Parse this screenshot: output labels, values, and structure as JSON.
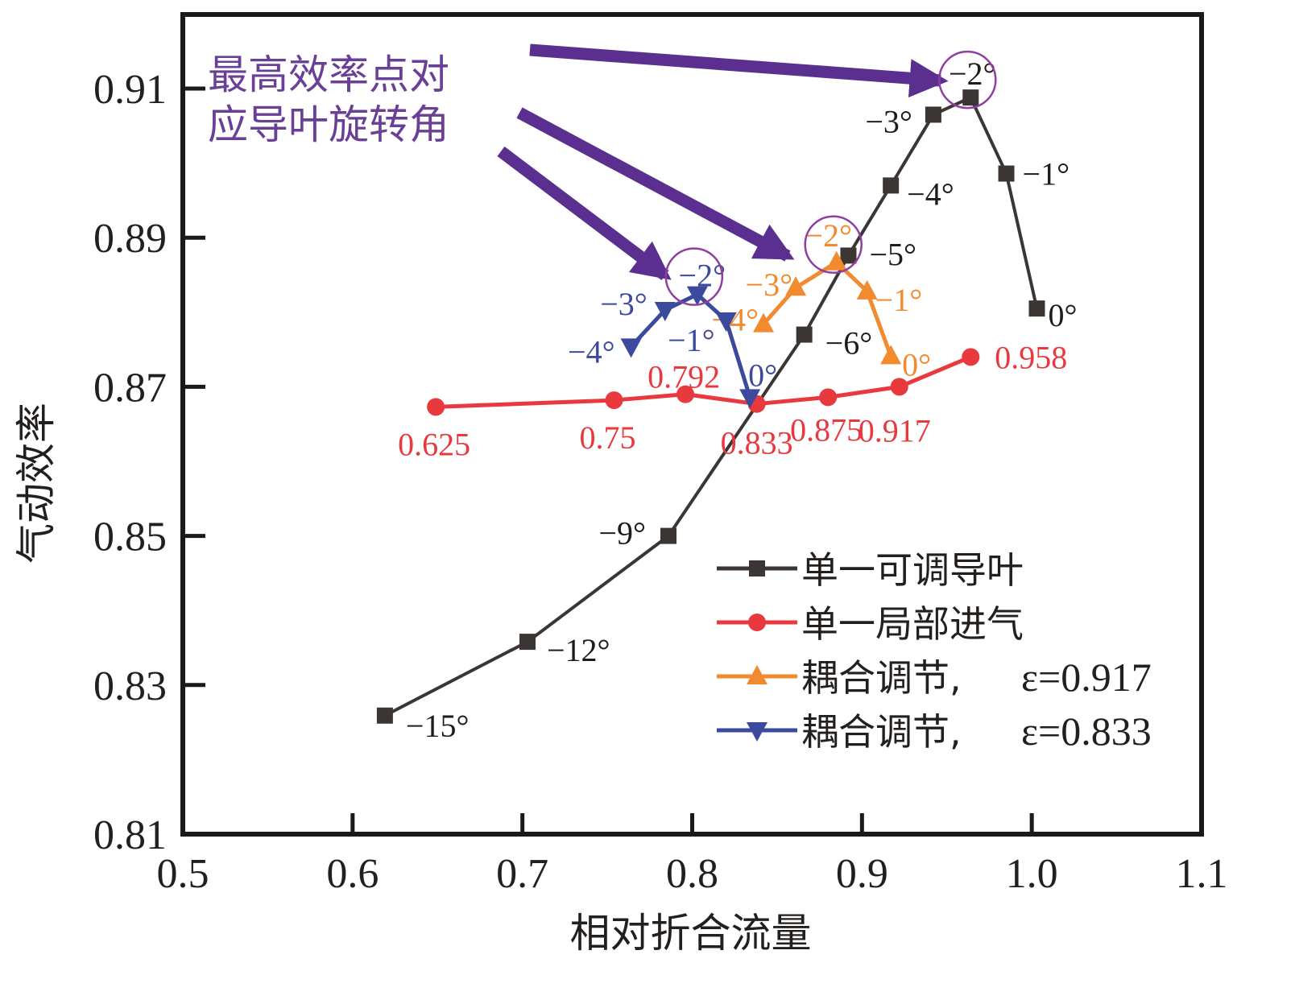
{
  "chart_data": {
    "type": "line",
    "title": "",
    "xlabel": "相对折合流量",
    "ylabel": "气动效率",
    "xlim": [
      0.5,
      1.1
    ],
    "ylim": [
      0.81,
      0.92
    ],
    "xticks": [
      0.5,
      0.6,
      0.7,
      0.8,
      0.9,
      1.0,
      1.1
    ],
    "xtick_labels": [
      "0.5",
      "0.6",
      "0.7",
      "0.8",
      "0.9",
      "1.0",
      "1.1"
    ],
    "yticks": [
      0.81,
      0.83,
      0.85,
      0.87,
      0.89,
      0.91
    ],
    "ytick_labels": [
      "0.81",
      "0.83",
      "0.85",
      "0.87",
      "0.89",
      "0.91"
    ],
    "grid": false,
    "legend_position": "bottom-right",
    "series": [
      {
        "name": "单一可调导叶",
        "color": "#3b3633",
        "marker": "square",
        "x": [
          0.619,
          0.703,
          0.786,
          0.866,
          0.892,
          0.917,
          0.942,
          0.964,
          0.985,
          1.003
        ],
        "y": [
          0.8259,
          0.8358,
          0.85,
          0.877,
          0.8876,
          0.897,
          0.9065,
          0.9088,
          0.8986,
          0.8805
        ],
        "point_labels": [
          "−15°",
          "−12°",
          "−9°",
          "−6°",
          "−5°",
          "−4°",
          "−3°",
          "−2°",
          "−1°",
          "0°"
        ]
      },
      {
        "name": "单一局部进气",
        "color": "#e8393e",
        "marker": "circle",
        "x": [
          0.649,
          0.754,
          0.796,
          0.838,
          0.88,
          0.922,
          0.964
        ],
        "y": [
          0.8673,
          0.8682,
          0.869,
          0.8677,
          0.8686,
          0.87,
          0.874
        ],
        "point_labels": [
          "0.625",
          "0.75",
          "0.792",
          "0.833",
          "0.875",
          "0.917",
          "0.958"
        ]
      },
      {
        "name": "耦合调节, ε=0.917",
        "legend_prefix": "耦合调节, ",
        "legend_eps": "ε=0.917",
        "color": "#f28a30",
        "marker": "triangle-up",
        "x": [
          0.842,
          0.861,
          0.885,
          0.903,
          0.917
        ],
        "y": [
          0.8784,
          0.8833,
          0.8867,
          0.8828,
          0.8741
        ],
        "point_labels": [
          "−4°",
          "−3°",
          "−2°",
          "−1°",
          "0°"
        ]
      },
      {
        "name": "耦合调节, ε=0.833",
        "legend_prefix": "耦合调节, ",
        "legend_eps": "ε=0.833",
        "color": "#3c4a9e",
        "marker": "triangle-down",
        "x": [
          0.764,
          0.784,
          0.803,
          0.82,
          0.834
        ],
        "y": [
          0.8754,
          0.8803,
          0.8824,
          0.8789,
          0.8686
        ],
        "point_labels": [
          "−4°",
          "−3°",
          "−2°",
          "−1°",
          "0°"
        ]
      }
    ],
    "annotations": {
      "text_line1": "最高效率点对",
      "text_line2": "应导叶旋转角",
      "color": "#6a3f96",
      "highlighted_points": [
        {
          "series": 0,
          "index": 7
        },
        {
          "series": 2,
          "index": 2
        },
        {
          "series": 3,
          "index": 2
        }
      ]
    }
  }
}
